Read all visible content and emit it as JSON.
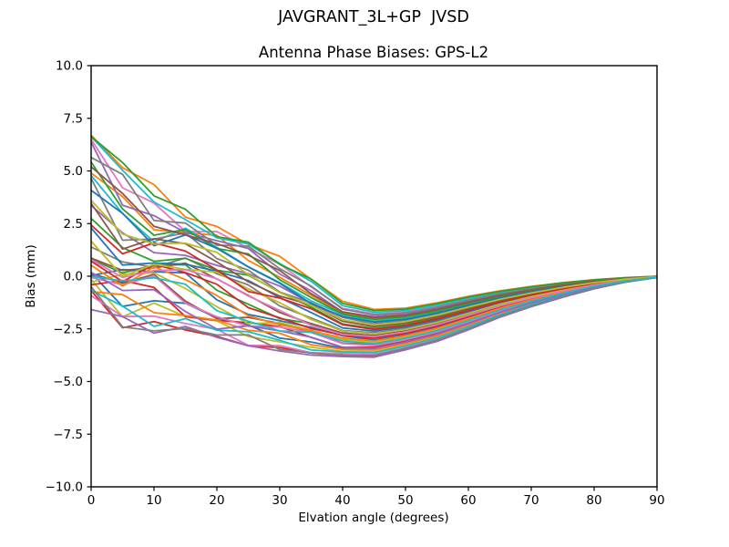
{
  "chart_data": {
    "type": "line",
    "title": "JAVGRANT_3L+GP  JVSD",
    "subtitle": "Antenna Phase Biases: GPS-L2",
    "xlabel": "Elvation angle (degrees)",
    "ylabel": "Bias (mm)",
    "xlim": [
      0,
      90
    ],
    "ylim": [
      -10.0,
      10.0
    ],
    "grid": false,
    "legend": "none",
    "xticks": [
      0,
      10,
      20,
      30,
      40,
      50,
      60,
      70,
      80,
      90
    ],
    "xtick_labels": [
      "0",
      "10",
      "20",
      "30",
      "40",
      "50",
      "60",
      "70",
      "80",
      "90"
    ],
    "yticks": [
      10.0,
      7.5,
      5.0,
      2.5,
      0.0,
      -2.5,
      -5.0,
      -7.5,
      -10.0
    ],
    "ytick_labels": [
      "10.0",
      "7.5",
      "5.0",
      "2.5",
      "0.0",
      "−2.5",
      "−5.0",
      "−7.5",
      "−10.0"
    ],
    "description": "Bundle of ~40 per-satellite antenna phase bias curves; spread 6.7 to -1.6 mm at 0 deg elevation, chaotic crossings below 40 deg, tight band with minimum near -3.85 mm around 40-50 deg, converging to 0 mm at 90 deg",
    "elevations": [
      0,
      5,
      10,
      15,
      20,
      25,
      30,
      35,
      40,
      45,
      50,
      55,
      60,
      65,
      70,
      75,
      80,
      85,
      90
    ],
    "envelope_top": [
      6.7,
      5.4,
      4.35,
      3.45,
      2.6,
      1.9,
      0.95,
      -0.05,
      -1.15,
      -1.5,
      -1.45,
      -1.2,
      -0.9,
      -0.65,
      -0.45,
      -0.28,
      -0.15,
      -0.06,
      0.0
    ],
    "envelope_bottom": [
      -1.6,
      -2.85,
      -2.7,
      -2.55,
      -2.9,
      -3.3,
      -3.55,
      -3.75,
      -3.85,
      -3.85,
      -3.5,
      -3.1,
      -2.55,
      -1.95,
      -1.45,
      -1.0,
      -0.6,
      -0.28,
      -0.06
    ],
    "series_count": 40,
    "line_width": 1.8,
    "palette": [
      "#1f77b4",
      "#ff7f0e",
      "#2ca02c",
      "#d62728",
      "#9467bd",
      "#8c564b",
      "#e377c2",
      "#7f7f7f",
      "#bcbd22",
      "#17becf"
    ],
    "series_gen": {
      "v0": 0.17,
      "vstep": 0.618034,
      "a1_base": 0.05,
      "a1_range": 0.1,
      "k1": 0.38197,
      "f1_base": 0.13,
      "f1_range": 0.17,
      "k2": 0.7548,
      "a2_base": 0.025,
      "a2_range": 0.05,
      "f2_base": 0.45,
      "f2_range": 0.3,
      "ph_step": 2.399,
      "decay_end": 45,
      "decay_pow": 0.8
    },
    "axis_color": "#000000",
    "background_color": "#ffffff"
  }
}
